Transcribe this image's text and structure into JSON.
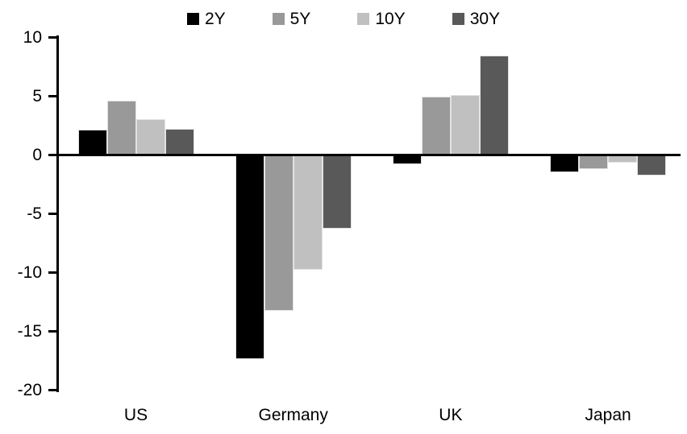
{
  "chart_data": {
    "type": "bar",
    "title": "",
    "xlabel": "",
    "ylabel": "",
    "categories": [
      "US",
      "Germany",
      "UK",
      "Japan"
    ],
    "series": [
      {
        "name": "2Y",
        "color": "#000000",
        "values": [
          2.1,
          -17.4,
          -0.8,
          -1.5
        ]
      },
      {
        "name": "5Y",
        "color": "#999999",
        "values": [
          4.6,
          -13.3,
          4.9,
          -1.2
        ]
      },
      {
        "name": "10Y",
        "color": "#c0c0c0",
        "values": [
          3.0,
          -9.8,
          5.1,
          -0.7
        ]
      },
      {
        "name": "30Y",
        "color": "#595959",
        "values": [
          2.2,
          -6.3,
          8.4,
          -1.8
        ]
      }
    ],
    "ylim": [
      -20,
      10
    ],
    "yticks": [
      10,
      5,
      0,
      -5,
      -10,
      -15,
      -20
    ],
    "legend_position": "top",
    "grid": false,
    "axis_color": "#000000",
    "background": "#ffffff"
  }
}
